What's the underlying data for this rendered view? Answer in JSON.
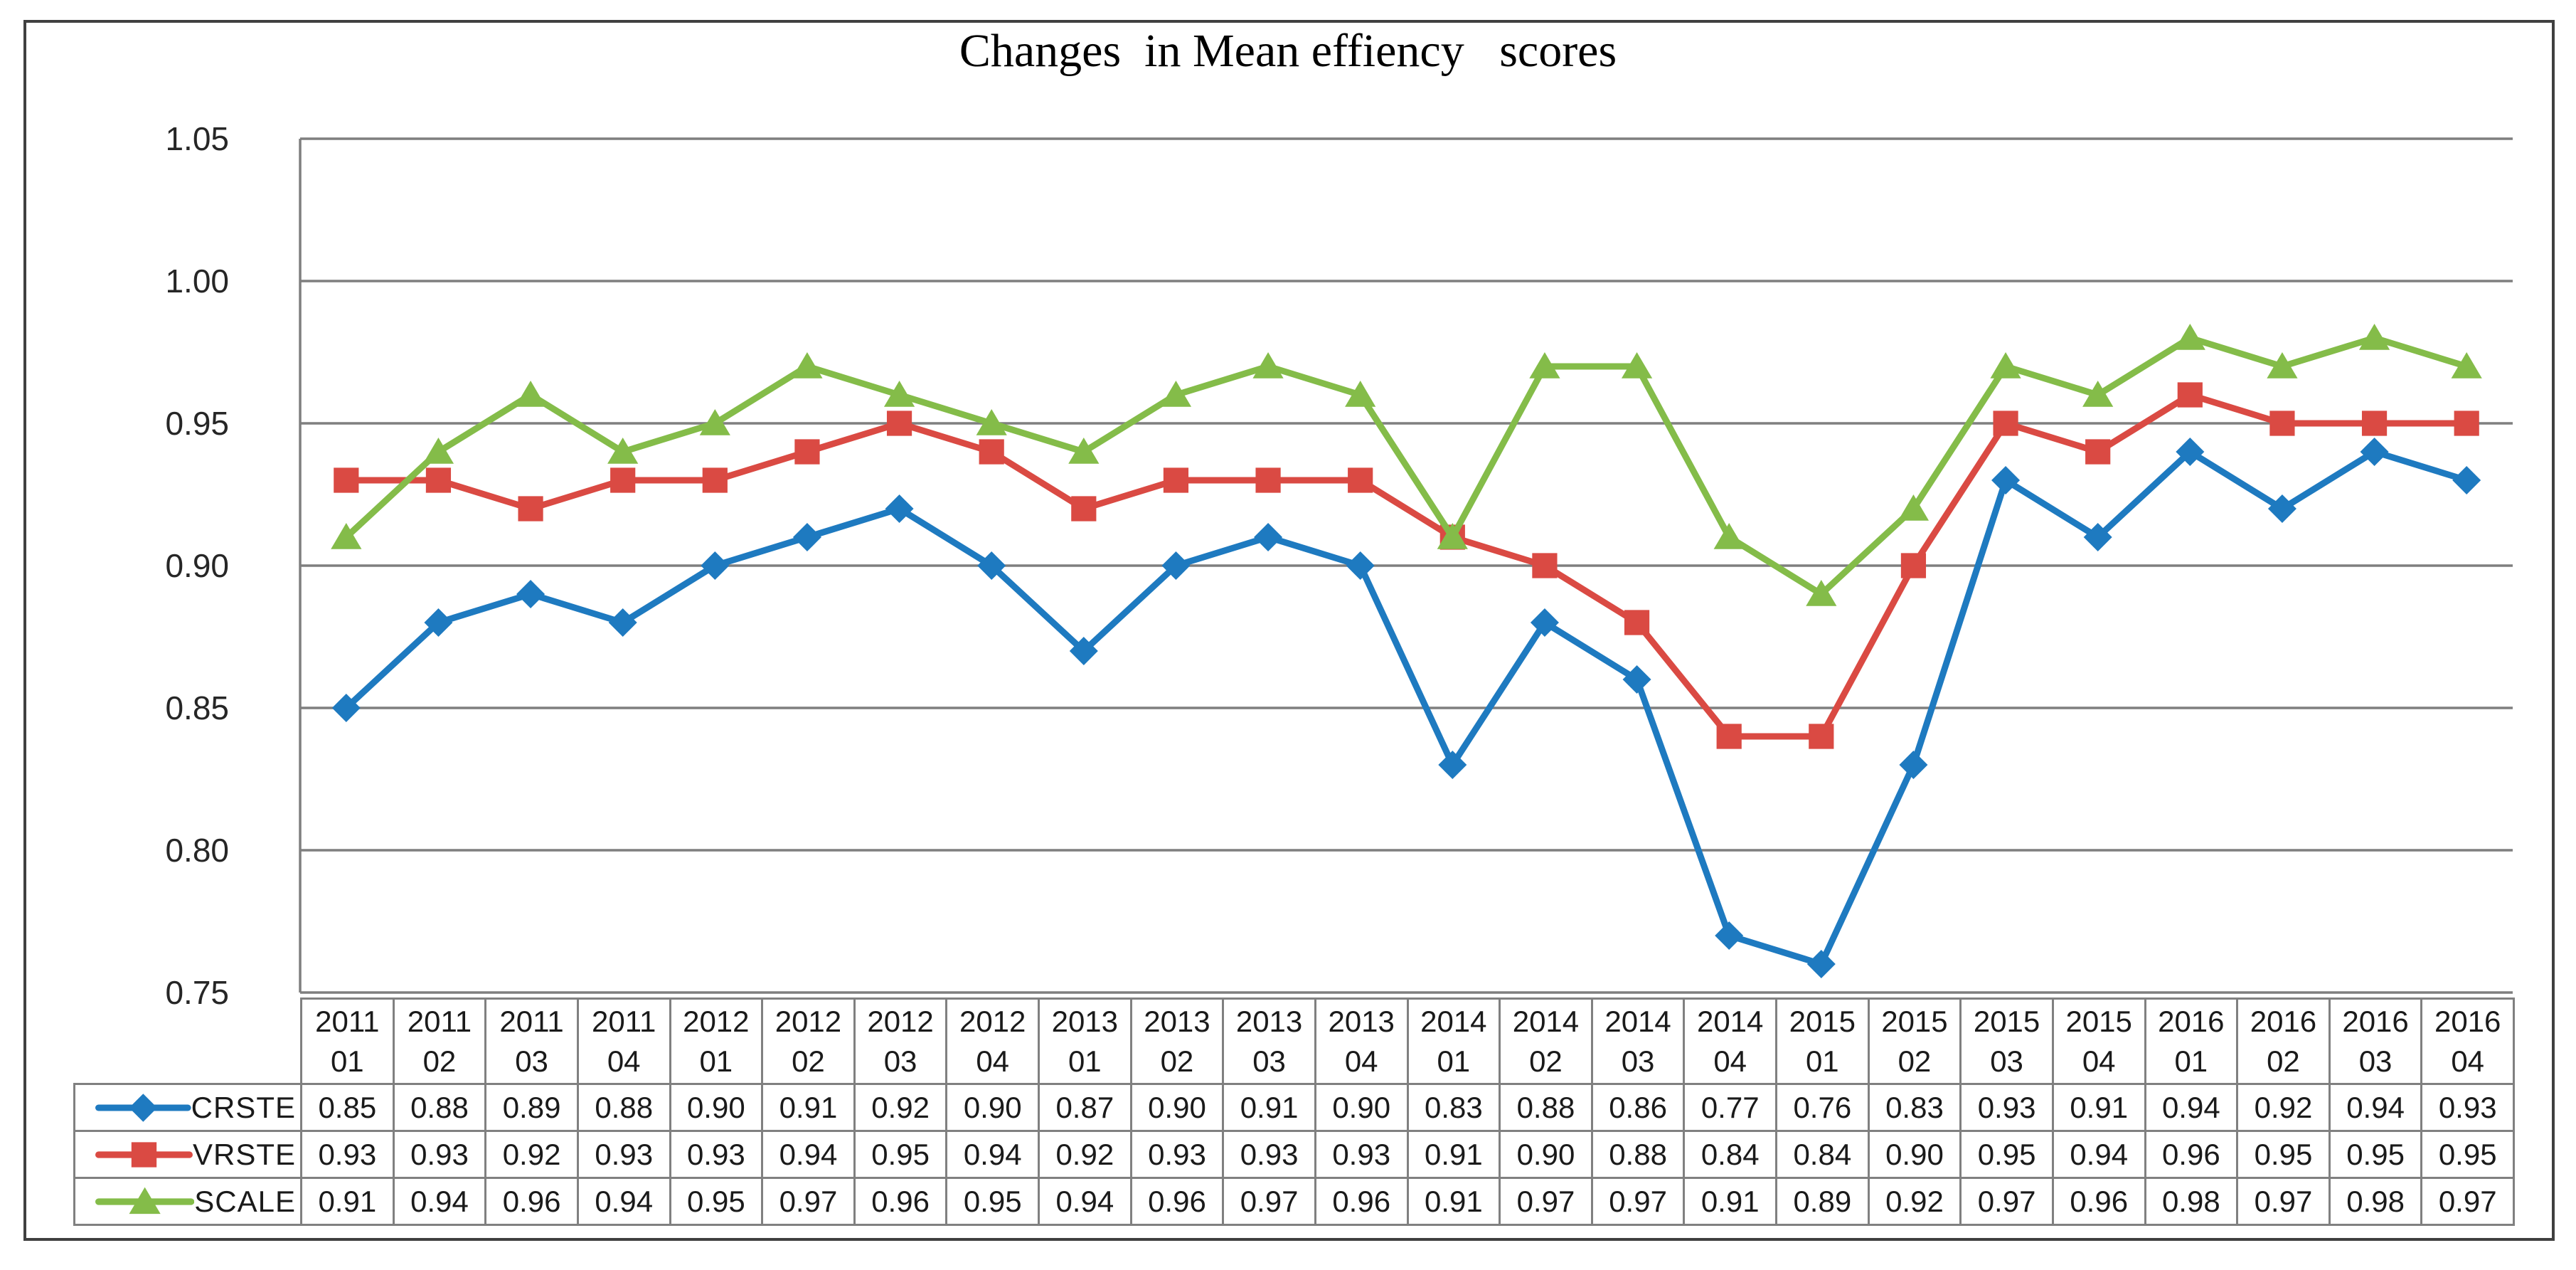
{
  "chart_data": {
    "type": "line",
    "title": "Changes  in Mean effiency   scores",
    "xlabel": "",
    "ylabel": "",
    "categories": [
      {
        "year": "2011",
        "quarter": "01"
      },
      {
        "year": "2011",
        "quarter": "02"
      },
      {
        "year": "2011",
        "quarter": "03"
      },
      {
        "year": "2011",
        "quarter": "04"
      },
      {
        "year": "2012",
        "quarter": "01"
      },
      {
        "year": "2012",
        "quarter": "02"
      },
      {
        "year": "2012",
        "quarter": "03"
      },
      {
        "year": "2012",
        "quarter": "04"
      },
      {
        "year": "2013",
        "quarter": "01"
      },
      {
        "year": "2013",
        "quarter": "02"
      },
      {
        "year": "2013",
        "quarter": "03"
      },
      {
        "year": "2013",
        "quarter": "04"
      },
      {
        "year": "2014",
        "quarter": "01"
      },
      {
        "year": "2014",
        "quarter": "02"
      },
      {
        "year": "2014",
        "quarter": "03"
      },
      {
        "year": "2014",
        "quarter": "04"
      },
      {
        "year": "2015",
        "quarter": "01"
      },
      {
        "year": "2015",
        "quarter": "02"
      },
      {
        "year": "2015",
        "quarter": "03"
      },
      {
        "year": "2015",
        "quarter": "04"
      },
      {
        "year": "2016",
        "quarter": "01"
      },
      {
        "year": "2016",
        "quarter": "02"
      },
      {
        "year": "2016",
        "quarter": "03"
      },
      {
        "year": "2016",
        "quarter": "04"
      }
    ],
    "series": [
      {
        "name": "CRSTE",
        "color": "#1e7ac0",
        "marker": "diamond",
        "values": [
          0.85,
          0.88,
          0.89,
          0.88,
          0.9,
          0.91,
          0.92,
          0.9,
          0.87,
          0.9,
          0.91,
          0.9,
          0.83,
          0.88,
          0.86,
          0.77,
          0.76,
          0.83,
          0.93,
          0.91,
          0.94,
          0.92,
          0.94,
          0.93
        ]
      },
      {
        "name": "VRSTE",
        "color": "#da4a43",
        "marker": "square",
        "values": [
          0.93,
          0.93,
          0.92,
          0.93,
          0.93,
          0.94,
          0.95,
          0.94,
          0.92,
          0.93,
          0.93,
          0.93,
          0.91,
          0.9,
          0.88,
          0.84,
          0.84,
          0.9,
          0.95,
          0.94,
          0.96,
          0.95,
          0.95,
          0.95
        ]
      },
      {
        "name": "SCALE",
        "color": "#84bc49",
        "marker": "triangle",
        "values": [
          0.91,
          0.94,
          0.96,
          0.94,
          0.95,
          0.97,
          0.96,
          0.95,
          0.94,
          0.96,
          0.97,
          0.96,
          0.91,
          0.97,
          0.97,
          0.91,
          0.89,
          0.92,
          0.97,
          0.96,
          0.98,
          0.97,
          0.98,
          0.97
        ]
      }
    ],
    "y_axis": {
      "ticks": [
        "1.05",
        "1.00",
        "0.95",
        "0.90",
        "0.85",
        "0.80",
        "0.75"
      ],
      "min": 0.75,
      "max": 1.05,
      "step": 0.05
    },
    "grid": "horizontal",
    "legend_position": "table-left",
    "value_decimals": 2
  },
  "colors": {
    "background": "#ffffff",
    "figure_border": "#404040",
    "gridline": "#7f7f7f",
    "table_border": "#808080",
    "axis_text": "#262626",
    "table_text": "#1a1a1a"
  }
}
